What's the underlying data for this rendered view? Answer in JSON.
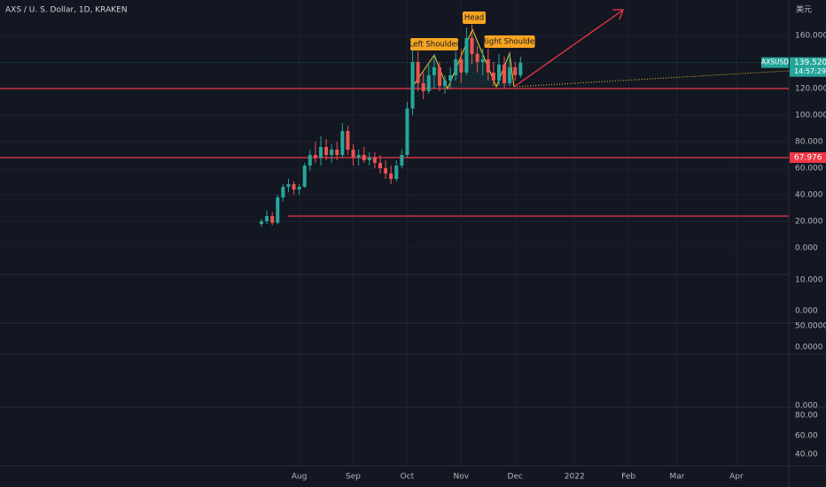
{
  "chart_data": {
    "type": "candlestick",
    "title": "AXS / U. S. Dollar, 1D, KRAKEN",
    "currency": "美元",
    "categories": [
      null,
      null,
      null,
      null,
      null,
      null,
      null,
      "Aug",
      null,
      null,
      null,
      null,
      null,
      null,
      null,
      null,
      null,
      "Sep",
      null,
      null,
      null,
      null,
      null,
      null,
      null,
      null,
      null,
      "Oct",
      null,
      null,
      null,
      null,
      null,
      null,
      null,
      null,
      null,
      "Nov",
      null,
      null,
      null,
      null,
      null,
      null,
      null,
      null,
      null,
      "Dec",
      null,
      null,
      null,
      null,
      null,
      null,
      null,
      null,
      null,
      null,
      "2022",
      null,
      null,
      null,
      null,
      null,
      null,
      null,
      null,
      null,
      "Feb",
      null,
      null,
      null,
      null,
      null,
      null,
      null,
      null,
      "Mar",
      null,
      null,
      null,
      null,
      null,
      null,
      null,
      null,
      null,
      null,
      "Apr",
      null,
      null,
      null,
      null,
      null,
      null,
      null,
      null,
      null,
      null
    ],
    "open": [
      18,
      20,
      24,
      19,
      38,
      46,
      48,
      44,
      46,
      62,
      70,
      68,
      76,
      70,
      74,
      70,
      88,
      74,
      68,
      70,
      66,
      68,
      64,
      60,
      56,
      52,
      62,
      70,
      105,
      140,
      124,
      118,
      130,
      136,
      122,
      126,
      130,
      142,
      132,
      158,
      146,
      140,
      142,
      132,
      126,
      138,
      124,
      136,
      130,
      null,
      null,
      null,
      null,
      null,
      null,
      null,
      null,
      null,
      null,
      null,
      null,
      null,
      null,
      null,
      null,
      null,
      null,
      null,
      null,
      null,
      null,
      null,
      null,
      null,
      null,
      null,
      null,
      null,
      null,
      null,
      null,
      null,
      null,
      null,
      null,
      null,
      null,
      null,
      null,
      null,
      null,
      null,
      null,
      null,
      null,
      null,
      null,
      null,
      null
    ],
    "high": [
      22,
      28,
      27,
      40,
      48,
      52,
      50,
      48,
      64,
      74,
      80,
      84,
      82,
      78,
      80,
      94,
      92,
      78,
      74,
      76,
      72,
      72,
      70,
      66,
      62,
      66,
      74,
      110,
      150,
      148,
      132,
      138,
      146,
      140,
      130,
      136,
      148,
      150,
      166,
      168,
      152,
      150,
      150,
      140,
      146,
      144,
      146,
      140,
      144,
      null,
      null,
      null,
      null,
      null,
      null,
      null,
      null,
      null,
      null,
      null,
      null,
      null,
      null,
      null,
      null,
      null,
      null,
      null,
      null,
      null,
      null,
      null,
      null,
      null,
      null,
      null,
      null,
      null,
      null,
      null,
      null,
      null,
      null,
      null,
      null,
      null,
      null,
      null,
      null,
      null,
      null,
      null,
      null,
      null,
      null,
      null,
      null,
      null,
      null
    ],
    "low": [
      16,
      18,
      17,
      18,
      35,
      42,
      40,
      40,
      45,
      58,
      64,
      62,
      66,
      64,
      66,
      68,
      70,
      62,
      62,
      64,
      62,
      60,
      56,
      52,
      48,
      50,
      60,
      68,
      100,
      118,
      112,
      116,
      120,
      118,
      116,
      120,
      126,
      124,
      130,
      138,
      132,
      130,
      126,
      122,
      122,
      120,
      122,
      126,
      128,
      null,
      null,
      null,
      null,
      null,
      null,
      null,
      null,
      null,
      null,
      null,
      null,
      null,
      null,
      null,
      null,
      null,
      null,
      null,
      null,
      null,
      null,
      null,
      null,
      null,
      null,
      null,
      null,
      null,
      null,
      null,
      null,
      null,
      null,
      null,
      null,
      null,
      null,
      null,
      null,
      null,
      null,
      null,
      null,
      null,
      null,
      null,
      null,
      null,
      null
    ],
    "close": [
      20,
      24,
      19,
      38,
      46,
      48,
      44,
      46,
      62,
      70,
      68,
      76,
      70,
      74,
      70,
      88,
      74,
      68,
      70,
      66,
      68,
      64,
      60,
      56,
      52,
      62,
      70,
      105,
      140,
      124,
      118,
      130,
      136,
      122,
      126,
      130,
      142,
      132,
      158,
      146,
      140,
      142,
      132,
      126,
      138,
      124,
      136,
      130,
      139.52,
      null,
      null,
      null,
      null,
      null,
      null,
      null,
      null,
      null,
      null,
      null,
      null,
      null,
      null,
      null,
      null,
      null,
      null,
      null,
      null,
      null,
      null,
      null,
      null,
      null,
      null,
      null,
      null,
      null,
      null,
      null,
      null,
      null,
      null,
      null,
      null,
      null,
      null,
      null,
      null,
      null,
      null,
      null,
      null,
      null,
      null,
      null,
      null,
      null,
      null
    ],
    "up_color": "#26a69a",
    "down_color": "#ef5350",
    "ylim": [
      -20,
      183.3
    ],
    "yticks": [
      {
        "value": 0,
        "label": "0.000"
      },
      {
        "value": 20,
        "label": "20.000"
      },
      {
        "value": 40,
        "label": "40.000"
      },
      {
        "value": 60,
        "label": "60.000"
      },
      {
        "value": 80,
        "label": "80.000"
      },
      {
        "value": 100,
        "label": "100.000"
      },
      {
        "value": 120,
        "label": "120.000"
      },
      {
        "value": 160,
        "label": "160.000"
      }
    ],
    "grid": true,
    "levels": [
      120,
      67.976,
      24
    ],
    "level_color": "#f23645",
    "symbol": "AXSUSD",
    "last_price": {
      "value": 139.52,
      "label": "139.520"
    },
    "countdown": "14:57:29",
    "annotations": [
      "Left Shoulder",
      "Head",
      "Right Shoulder"
    ]
  },
  "indicator_axes": [
    {
      "labels": [
        "10.000",
        "0.000"
      ]
    },
    {
      "labels": [
        "50.0000",
        "0.0000"
      ]
    },
    {
      "labels": [
        "0.000"
      ]
    },
    {
      "labels": [
        "80.00",
        "60.00",
        "40.00"
      ]
    }
  ]
}
